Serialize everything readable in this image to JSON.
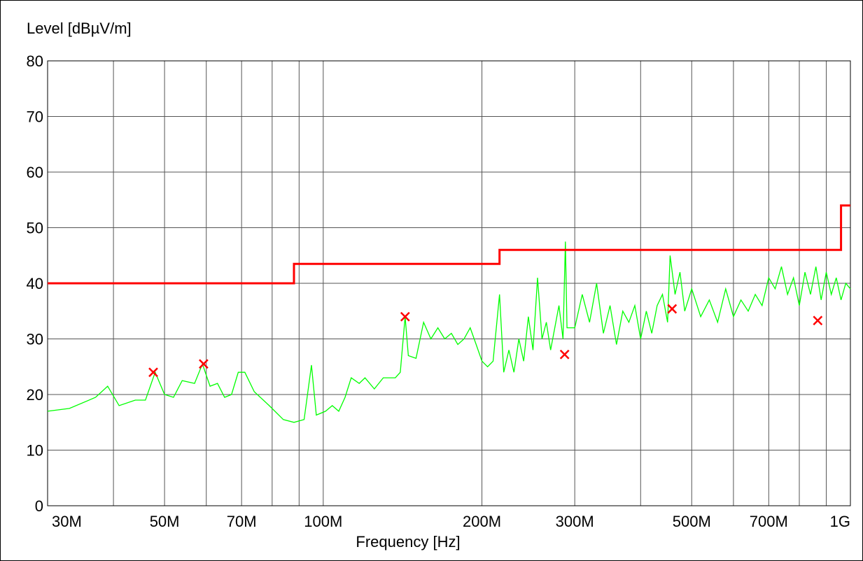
{
  "chart_data": {
    "type": "line",
    "ylabel": "Level [dBµV/m]",
    "xlabel": "Frequency [Hz]",
    "xscale": "log",
    "xlim": [
      30000000,
      1000000000
    ],
    "ylim": [
      0,
      80
    ],
    "yticks": [
      0,
      10,
      20,
      30,
      40,
      50,
      60,
      70,
      80
    ],
    "xticks": [
      {
        "value": 30000000,
        "label": "30M"
      },
      {
        "value": 50000000,
        "label": "50M"
      },
      {
        "value": 70000000,
        "label": "70M"
      },
      {
        "value": 100000000,
        "label": "100M"
      },
      {
        "value": 200000000,
        "label": "200M"
      },
      {
        "value": 300000000,
        "label": "300M"
      },
      {
        "value": 500000000,
        "label": "500M"
      },
      {
        "value": 700000000,
        "label": "700M"
      },
      {
        "value": 1000000000,
        "label": "1G"
      }
    ],
    "xminor": [
      40000000,
      60000000,
      80000000,
      90000000,
      400000000,
      600000000,
      800000000,
      900000000
    ],
    "grid": true,
    "series": [
      {
        "color": "#00ff00",
        "style": "line",
        "x": [
          30,
          33,
          37,
          39,
          41,
          44,
          46,
          48,
          50,
          52,
          54,
          57,
          59,
          61,
          63,
          65,
          67,
          69,
          71,
          74,
          79,
          84,
          88,
          92,
          95,
          97,
          101,
          104,
          107,
          110,
          113,
          117,
          120,
          125,
          130,
          137,
          140,
          143,
          145,
          150,
          155,
          160,
          165,
          170,
          175,
          180,
          185,
          190,
          195,
          200,
          205,
          210,
          216,
          220,
          225,
          230,
          235,
          240,
          245,
          250,
          255,
          260,
          265,
          270,
          280,
          285,
          288,
          290,
          300,
          310,
          320,
          330,
          340,
          350,
          360,
          370,
          380,
          390,
          400,
          410,
          420,
          430,
          440,
          450,
          455,
          465,
          475,
          485,
          500,
          520,
          540,
          560,
          580,
          600,
          620,
          640,
          660,
          680,
          700,
          720,
          740,
          760,
          780,
          800,
          820,
          840,
          860,
          880,
          900,
          920,
          940,
          960,
          980,
          1000
        ],
        "values": [
          17,
          17.5,
          19.5,
          21.5,
          18,
          19,
          19,
          24,
          20,
          19.5,
          22.5,
          22,
          25.5,
          21.5,
          22,
          19.5,
          20,
          24,
          24,
          20.5,
          18,
          15.5,
          15,
          15.5,
          25.3,
          16.3,
          17,
          18,
          17,
          19.5,
          23,
          22,
          23,
          21,
          23,
          23,
          24,
          34,
          27,
          26.5,
          33,
          30,
          32,
          30,
          31,
          29,
          30,
          32,
          29,
          26,
          25,
          26,
          38,
          24,
          28,
          24,
          30,
          26,
          34,
          28,
          41,
          30,
          33,
          28,
          36,
          30,
          47.5,
          32,
          32,
          38,
          33,
          40,
          31,
          36,
          29,
          35,
          33,
          36,
          30,
          35,
          31,
          36,
          38,
          33,
          45,
          38,
          42,
          35,
          39,
          34,
          37,
          33,
          39,
          34,
          37,
          35,
          38,
          36,
          41,
          39,
          43,
          38,
          41,
          36,
          42,
          38,
          43,
          37,
          42,
          38,
          41,
          37,
          40,
          39
        ]
      },
      {
        "color": "#ff0000",
        "style": "line",
        "x": [
          30,
          88,
          88,
          216,
          216,
          960,
          960,
          1000
        ],
        "values": [
          40,
          40,
          43.5,
          43.5,
          46,
          46,
          54,
          54
        ]
      },
      {
        "color": "#ff0000",
        "style": "marker",
        "x": [
          47.6,
          59.3,
          143,
          287,
          459,
          867
        ],
        "values": [
          24,
          25.5,
          34,
          27.2,
          35.4,
          33.3
        ]
      }
    ],
    "x_unit_scale": 1000000
  }
}
